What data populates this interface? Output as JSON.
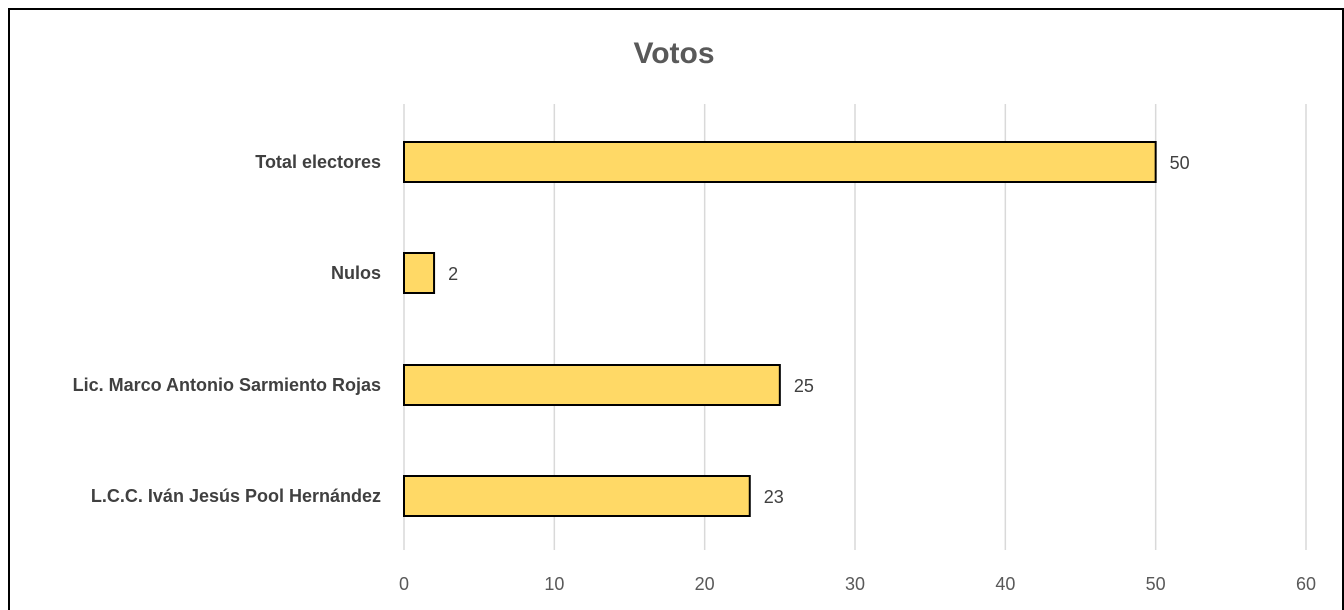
{
  "chart_data": {
    "type": "bar",
    "orientation": "horizontal",
    "title": "Votos",
    "categories": [
      "Total electores",
      "Nulos",
      "Lic. Marco Antonio Sarmiento Rojas",
      "L.C.C. Iván Jesús Pool Hernández"
    ],
    "values": [
      50,
      2,
      25,
      23
    ],
    "xlim": [
      0,
      60
    ],
    "xticks": [
      0,
      10,
      20,
      30,
      40,
      50,
      60
    ],
    "xlabel": "",
    "ylabel": "",
    "grid": "vertical",
    "legend": "none",
    "data_labels": true,
    "bar_color": "#FFD966",
    "bar_edge_color": "#000000"
  }
}
